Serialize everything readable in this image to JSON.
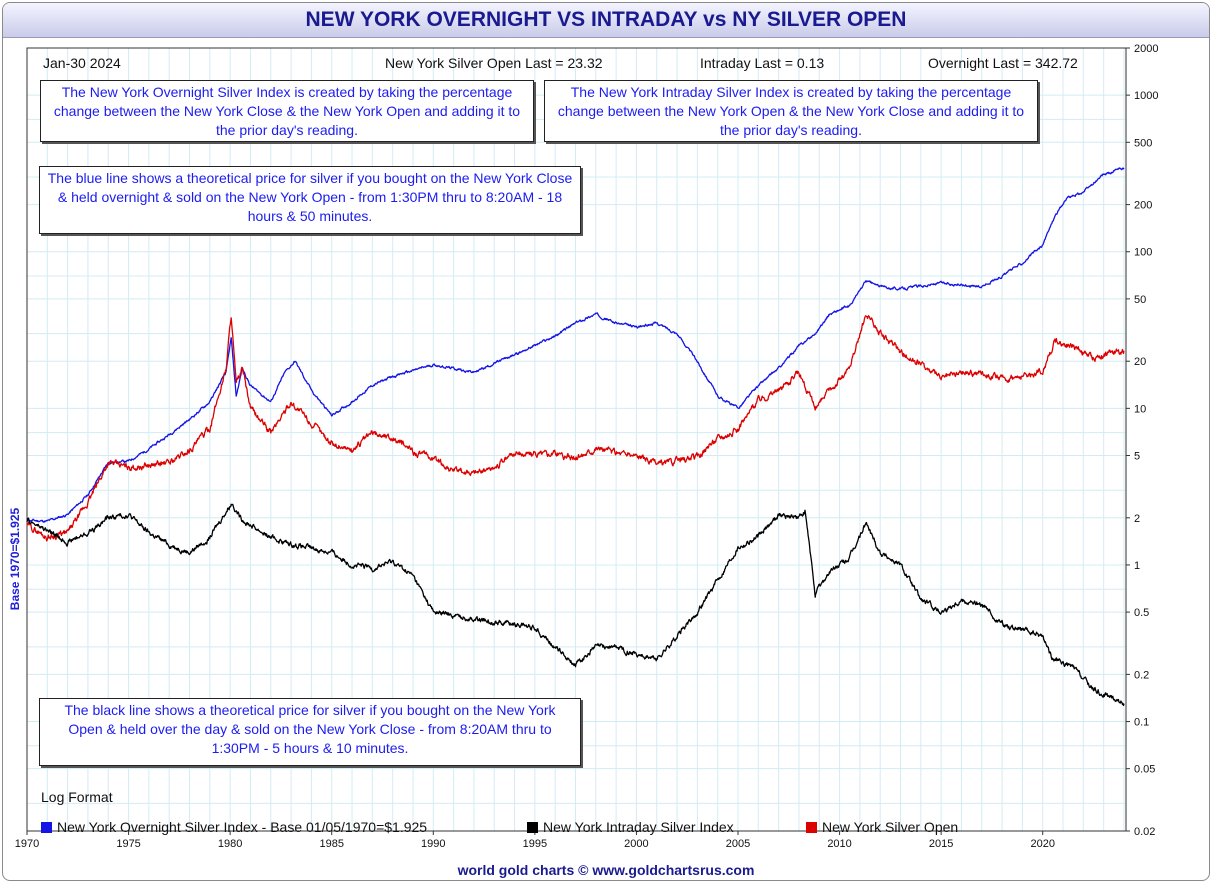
{
  "header": {
    "title": "NEW YORK OVERNIGHT VS INTRADAY vs NY SILVER OPEN",
    "date": "Jan-30  2024",
    "open_last": "New York Silver Open Last = 23.32",
    "intraday_last": "Intraday Last = 0.13",
    "overnight_last": "Overnight Last = 342.72"
  },
  "notes": {
    "overnight_def": "The New York Overnight Silver Index is created by taking the percentage change between the New York Close & the New York Open and adding it to the prior day's reading.",
    "intraday_def": "The New York Intraday Silver Index is created by taking the percentage change between the New York Open & the New York Close and adding it to the prior day's reading.",
    "blue_line": "The blue line shows a theoretical price for silver if you bought on the New York Close & held overnight & sold on the New York Open - from 1:30PM thru to 8:20AM - 18 hours & 50 minutes.",
    "black_line": "The black line shows a theoretical price for silver if you bought on the New York Open & held over the day & sold on the New York Close - from 8:20AM thru to 1:30PM - 5 hours & 10 minutes."
  },
  "log_format": "Log Format",
  "footer": "world gold charts © www.goldchartsrus.com",
  "colors": {
    "overnight": "#1414e6",
    "intraday": "#000000",
    "open": "#dd0000",
    "grid": "#d3ecf4",
    "title": "#1a1a90"
  },
  "chart_data": {
    "type": "line",
    "ylabel": "Base 1970=$1.925",
    "xlabel": "",
    "y_scale": "log",
    "ylim": [
      0.02,
      2000
    ],
    "xlim": [
      1970,
      2024.1
    ],
    "x_ticks": [
      "1970",
      "1975",
      "1980",
      "1985",
      "1990",
      "1995",
      "2000",
      "2005",
      "2010",
      "2015",
      "2020"
    ],
    "y_ticks": [
      "2000",
      "1000",
      "500",
      "200",
      "100",
      "50",
      "20",
      "10",
      "5",
      "2",
      "1",
      "0.5",
      "0.2",
      "0.1",
      "0.05",
      "0.02"
    ],
    "grid": true,
    "legend": "bottom",
    "series": [
      {
        "name": "New York Overnight Silver Index - Base 01/05/1970=$1.925",
        "color": "#1414e6",
        "points": [
          [
            1970,
            1.93
          ],
          [
            1971,
            1.9
          ],
          [
            1972,
            2.1
          ],
          [
            1973,
            2.8
          ],
          [
            1974,
            4.5
          ],
          [
            1975,
            4.6
          ],
          [
            1976,
            5.5
          ],
          [
            1977,
            6.8
          ],
          [
            1978,
            8.5
          ],
          [
            1979,
            11
          ],
          [
            1979.8,
            17
          ],
          [
            1980.05,
            28
          ],
          [
            1980.3,
            12
          ],
          [
            1980.6,
            18
          ],
          [
            1981,
            14
          ],
          [
            1982,
            11
          ],
          [
            1982.7,
            17
          ],
          [
            1983.2,
            20
          ],
          [
            1984,
            13
          ],
          [
            1985,
            9
          ],
          [
            1986,
            11
          ],
          [
            1987,
            14
          ],
          [
            1988,
            16
          ],
          [
            1990,
            19
          ],
          [
            1992,
            17
          ],
          [
            1994,
            22
          ],
          [
            1996,
            29
          ],
          [
            1997,
            35
          ],
          [
            1998,
            40
          ],
          [
            1999,
            35
          ],
          [
            2000,
            33
          ],
          [
            2001,
            35
          ],
          [
            2002,
            30
          ],
          [
            2003,
            20
          ],
          [
            2004,
            12
          ],
          [
            2005,
            10
          ],
          [
            2006,
            14
          ],
          [
            2007,
            18
          ],
          [
            2008,
            25
          ],
          [
            2008.8,
            30
          ],
          [
            2009.5,
            40
          ],
          [
            2010.5,
            45
          ],
          [
            2011.3,
            65
          ],
          [
            2012,
            60
          ],
          [
            2013,
            58
          ],
          [
            2015,
            63
          ],
          [
            2017,
            60
          ],
          [
            2018,
            70
          ],
          [
            2019,
            85
          ],
          [
            2020,
            110
          ],
          [
            2020.6,
            170
          ],
          [
            2021.2,
            220
          ],
          [
            2022,
            240
          ],
          [
            2023,
            310
          ],
          [
            2024,
            342.72
          ]
        ]
      },
      {
        "name": "New York Intraday Silver Index",
        "color": "#000000",
        "points": [
          [
            1970,
            1.93
          ],
          [
            1971,
            1.65
          ],
          [
            1972,
            1.4
          ],
          [
            1973,
            1.6
          ],
          [
            1974,
            2.0
          ],
          [
            1975,
            2.1
          ],
          [
            1976,
            1.6
          ],
          [
            1977,
            1.35
          ],
          [
            1978,
            1.2
          ],
          [
            1979,
            1.5
          ],
          [
            1979.8,
            2.2
          ],
          [
            1980.1,
            2.5
          ],
          [
            1980.5,
            2.0
          ],
          [
            1981,
            1.8
          ],
          [
            1982,
            1.5
          ],
          [
            1983,
            1.35
          ],
          [
            1985,
            1.2
          ],
          [
            1986,
            1.0
          ],
          [
            1987,
            0.95
          ],
          [
            1988,
            1.05
          ],
          [
            1989,
            0.85
          ],
          [
            1990,
            0.5
          ],
          [
            1992,
            0.45
          ],
          [
            1994,
            0.42
          ],
          [
            1995,
            0.4
          ],
          [
            1996,
            0.3
          ],
          [
            1997,
            0.23
          ],
          [
            1998,
            0.3
          ],
          [
            1999,
            0.3
          ],
          [
            2000,
            0.27
          ],
          [
            2001,
            0.25
          ],
          [
            2002,
            0.35
          ],
          [
            2003,
            0.5
          ],
          [
            2004,
            0.8
          ],
          [
            2005,
            1.3
          ],
          [
            2006,
            1.5
          ],
          [
            2007,
            2.1
          ],
          [
            2008,
            2.0
          ],
          [
            2008.3,
            2.2
          ],
          [
            2008.8,
            0.65
          ],
          [
            2009.5,
            0.9
          ],
          [
            2010.5,
            1.1
          ],
          [
            2011.3,
            1.85
          ],
          [
            2012,
            1.2
          ],
          [
            2013,
            1.0
          ],
          [
            2014,
            0.6
          ],
          [
            2015,
            0.5
          ],
          [
            2016,
            0.6
          ],
          [
            2017,
            0.55
          ],
          [
            2018,
            0.42
          ],
          [
            2019,
            0.38
          ],
          [
            2020,
            0.35
          ],
          [
            2020.5,
            0.25
          ],
          [
            2021.5,
            0.22
          ],
          [
            2022.5,
            0.16
          ],
          [
            2023.5,
            0.14
          ],
          [
            2024,
            0.13
          ]
        ]
      },
      {
        "name": "New York Silver Open",
        "color": "#dd0000",
        "points": [
          [
            1970,
            1.8
          ],
          [
            1971,
            1.5
          ],
          [
            1972,
            1.6
          ],
          [
            1973,
            2.5
          ],
          [
            1974,
            4.5
          ],
          [
            1975,
            4.2
          ],
          [
            1976,
            4.3
          ],
          [
            1977,
            4.5
          ],
          [
            1978,
            5.4
          ],
          [
            1979,
            7.5
          ],
          [
            1979.8,
            18
          ],
          [
            1980.05,
            40
          ],
          [
            1980.3,
            14
          ],
          [
            1980.6,
            18
          ],
          [
            1981,
            10
          ],
          [
            1982,
            7
          ],
          [
            1983,
            11
          ],
          [
            1984,
            8
          ],
          [
            1985,
            6
          ],
          [
            1986,
            5.4
          ],
          [
            1987,
            7
          ],
          [
            1988,
            6.5
          ],
          [
            1989,
            5.3
          ],
          [
            1990,
            4.8
          ],
          [
            1991,
            4.0
          ],
          [
            1992,
            3.9
          ],
          [
            1993,
            4.2
          ],
          [
            1994,
            5.2
          ],
          [
            1995,
            5.1
          ],
          [
            1996,
            5.2
          ],
          [
            1997,
            4.8
          ],
          [
            1998,
            5.6
          ],
          [
            1999,
            5.2
          ],
          [
            2000,
            5.0
          ],
          [
            2001,
            4.4
          ],
          [
            2002,
            4.6
          ],
          [
            2003,
            4.9
          ],
          [
            2004,
            6.5
          ],
          [
            2005,
            7.3
          ],
          [
            2006,
            11.5
          ],
          [
            2007,
            13
          ],
          [
            2008,
            17
          ],
          [
            2008.8,
            10
          ],
          [
            2009.5,
            13
          ],
          [
            2010.5,
            18
          ],
          [
            2011.3,
            40
          ],
          [
            2012,
            30
          ],
          [
            2013,
            23
          ],
          [
            2014,
            19
          ],
          [
            2015,
            15.5
          ],
          [
            2016,
            17
          ],
          [
            2017,
            17
          ],
          [
            2018,
            15.5
          ],
          [
            2019,
            16
          ],
          [
            2020,
            17.5
          ],
          [
            2020.6,
            27
          ],
          [
            2021.5,
            25
          ],
          [
            2022.5,
            21
          ],
          [
            2023.5,
            23
          ],
          [
            2024,
            23.32
          ]
        ]
      }
    ]
  }
}
